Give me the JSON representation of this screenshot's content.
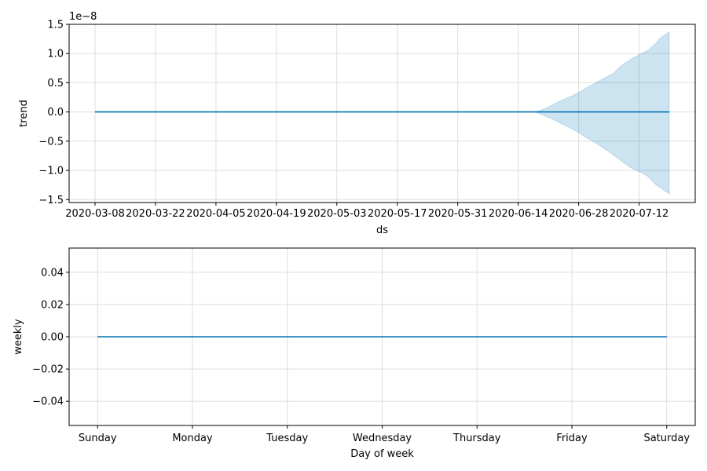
{
  "chart_data": [
    {
      "type": "line",
      "xlabel": "ds",
      "ylabel": "trend",
      "offset_label": "1e−8",
      "x_tick_labels": [
        "2020-03-08",
        "2020-03-22",
        "2020-04-05",
        "2020-04-19",
        "2020-05-03",
        "2020-05-17",
        "2020-05-31",
        "2020-06-14",
        "2020-06-28",
        "2020-07-12"
      ],
      "y_tick_labels": [
        "−1.5",
        "−1.0",
        "−0.5",
        "0.0",
        "0.5",
        "1.0",
        "1.5"
      ],
      "y_ticks": [
        -1.5,
        -1.0,
        -0.5,
        0.0,
        0.5,
        1.0,
        1.5
      ],
      "ylim": [
        -1.55,
        1.5
      ],
      "xlim": [
        "2020-03-02",
        "2020-07-25"
      ],
      "grid": true,
      "series": [
        {
          "x": [
            "2020-03-08",
            "2020-07-19"
          ],
          "values": [
            0.0,
            0.0
          ]
        }
      ],
      "uncertainty_band": {
        "x": [
          "2020-06-18",
          "2020-06-20",
          "2020-06-22",
          "2020-06-24",
          "2020-06-26",
          "2020-06-28",
          "2020-06-30",
          "2020-07-02",
          "2020-07-04",
          "2020-07-06",
          "2020-07-08",
          "2020-07-10",
          "2020-07-12",
          "2020-07-14",
          "2020-07-16",
          "2020-07-17",
          "2020-07-19"
        ],
        "upper": [
          0.0,
          0.05,
          0.12,
          0.2,
          0.26,
          0.33,
          0.42,
          0.5,
          0.58,
          0.66,
          0.8,
          0.9,
          0.98,
          1.05,
          1.18,
          1.27,
          1.37
        ],
        "lower": [
          0.0,
          -0.06,
          -0.12,
          -0.2,
          -0.27,
          -0.35,
          -0.45,
          -0.53,
          -0.63,
          -0.73,
          -0.85,
          -0.95,
          -1.02,
          -1.1,
          -1.25,
          -1.3,
          -1.4
        ]
      },
      "colors": {
        "line": "#0072b2",
        "band": "#0072b2"
      }
    },
    {
      "type": "line",
      "xlabel": "Day of week",
      "ylabel": "weekly",
      "x_tick_labels": [
        "Sunday",
        "Monday",
        "Tuesday",
        "Wednesday",
        "Thursday",
        "Friday",
        "Saturday"
      ],
      "y_tick_labels": [
        "−0.04",
        "−0.02",
        "0.00",
        "0.02",
        "0.04"
      ],
      "y_ticks": [
        -0.04,
        -0.02,
        0.0,
        0.02,
        0.04
      ],
      "ylim": [
        -0.055,
        0.055
      ],
      "xlim": [
        -0.3,
        6.3
      ],
      "grid": true,
      "series": [
        {
          "x": [
            0,
            1,
            2,
            3,
            4,
            5,
            6
          ],
          "values": [
            0.0,
            0.0,
            0.0,
            0.0,
            0.0,
            0.0,
            0.0
          ]
        }
      ],
      "colors": {
        "line": "#0072b2"
      }
    }
  ]
}
